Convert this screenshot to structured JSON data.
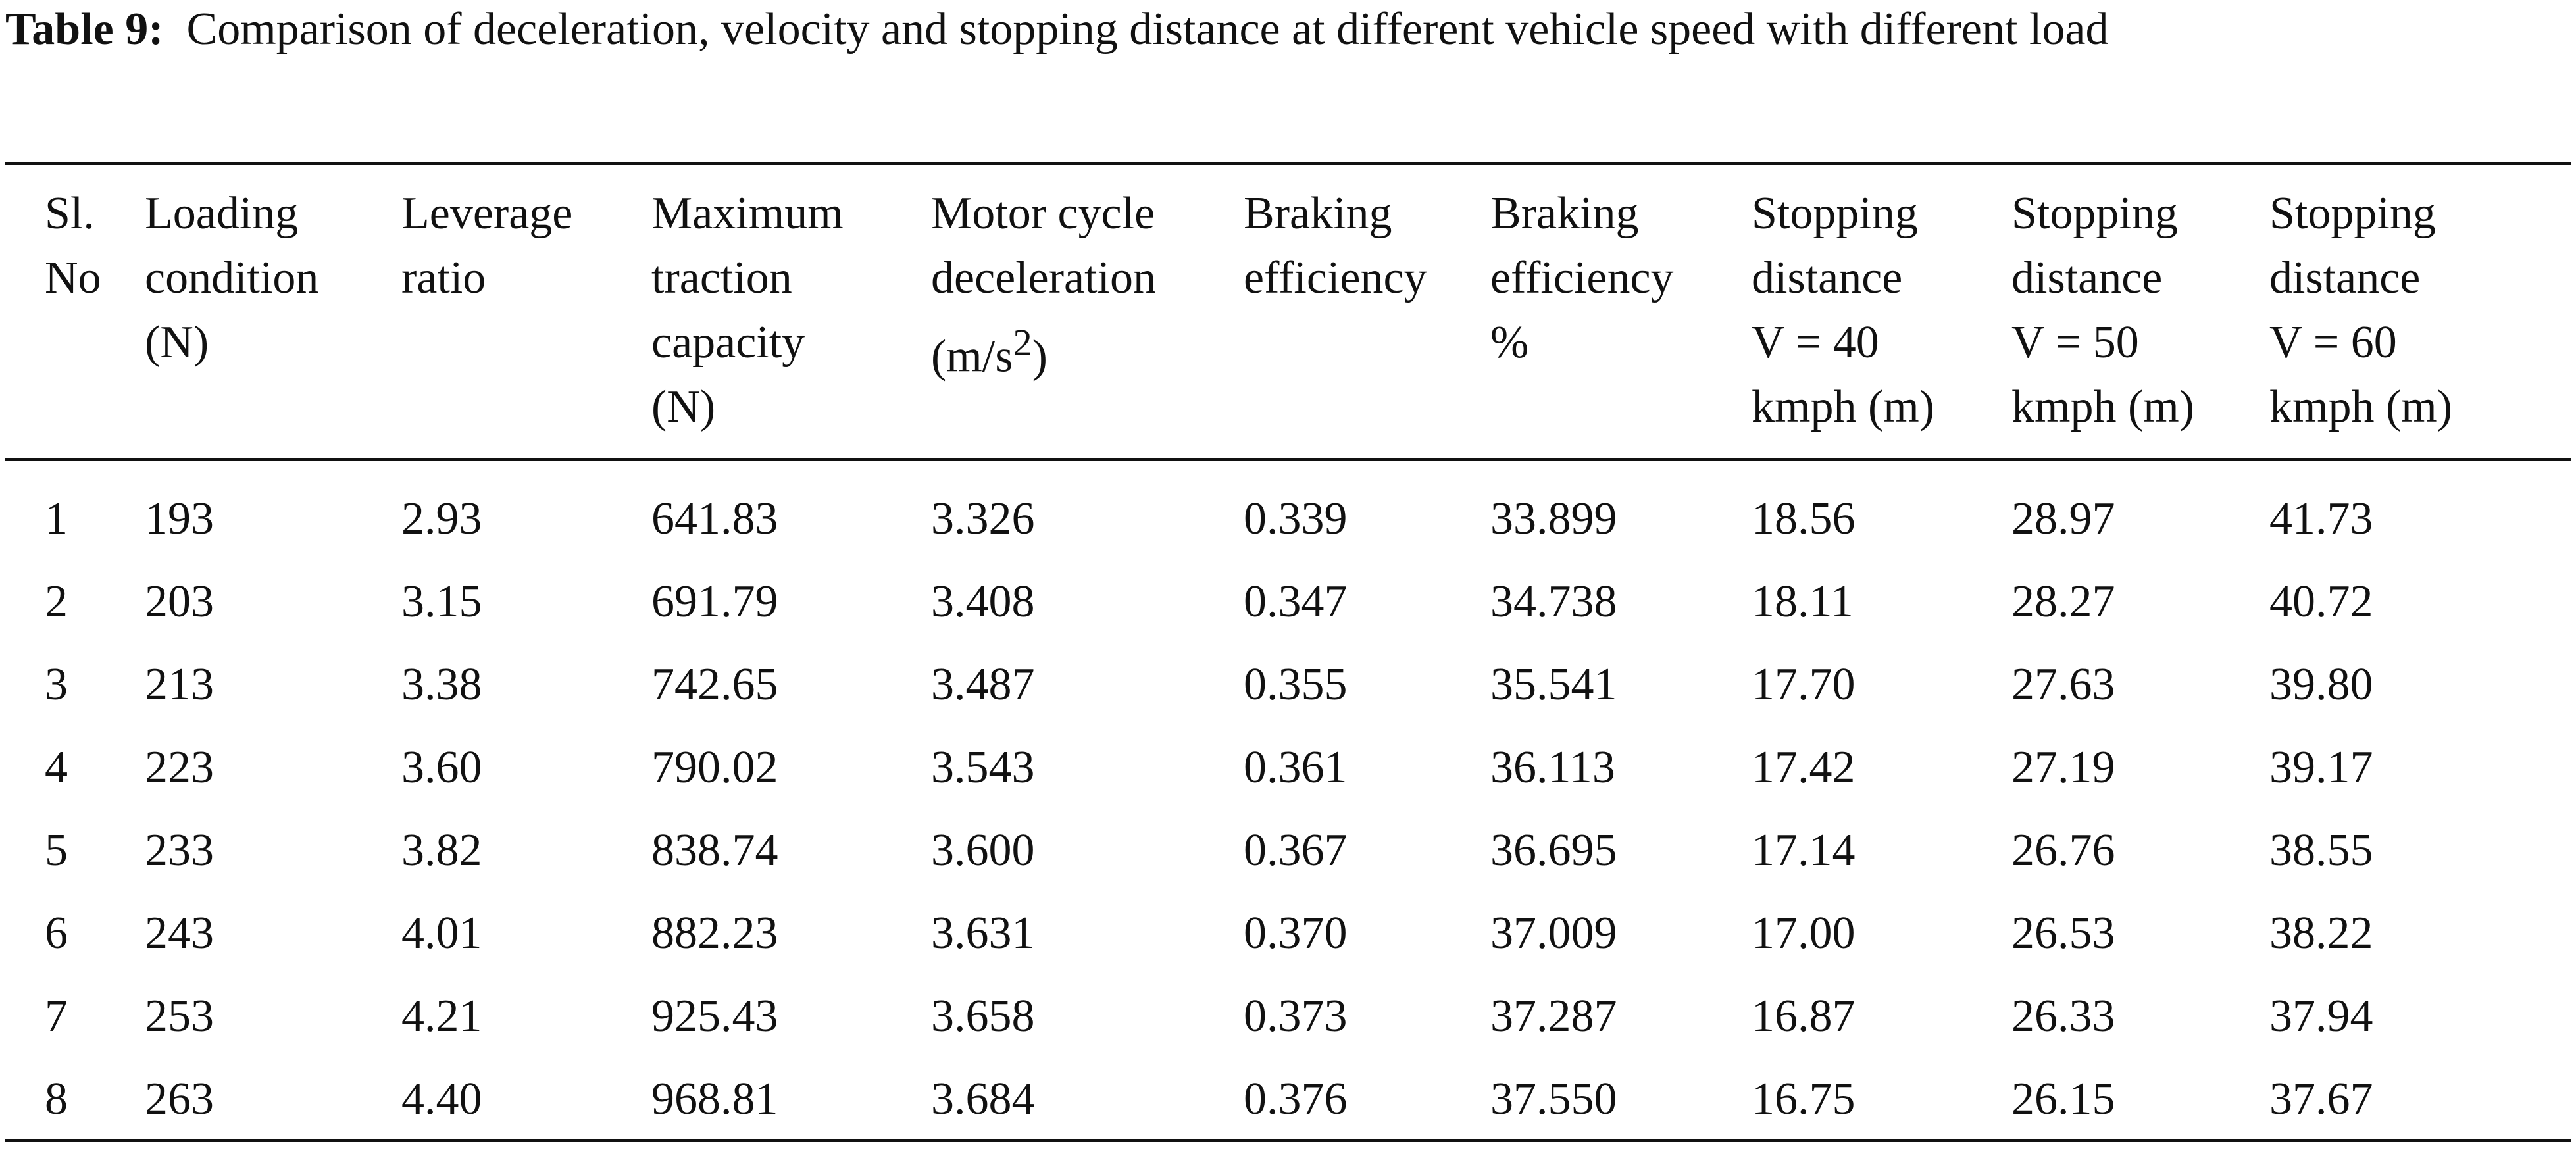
{
  "caption": {
    "label": "Table 9:",
    "text": "Comparison of deceleration, velocity and stopping distance at different vehicle speed with different load"
  },
  "table": {
    "headers": [
      [
        "Sl.",
        "No"
      ],
      [
        "Loading",
        "condition",
        "(N)"
      ],
      [
        "Leverage",
        "ratio"
      ],
      [
        "Maximum",
        "traction",
        "capacity",
        "(N)"
      ],
      [
        "Motor cycle",
        "deceleration",
        "(m/s",
        "2",
        ")"
      ],
      [
        "Braking",
        "efficiency"
      ],
      [
        "Braking",
        "efficiency",
        "%"
      ],
      [
        "Stopping",
        "distance",
        "V = 40",
        "kmph (m)"
      ],
      [
        "Stopping",
        "distance",
        "V = 50",
        "kmph (m)"
      ],
      [
        "Stopping",
        "distance",
        "V = 60",
        "kmph (m)"
      ]
    ],
    "rows": [
      [
        "1",
        "193",
        "2.93",
        "641.83",
        "3.326",
        "0.339",
        "33.899",
        "18.56",
        "28.97",
        "41.73"
      ],
      [
        "2",
        "203",
        "3.15",
        "691.79",
        "3.408",
        "0.347",
        "34.738",
        "18.11",
        "28.27",
        "40.72"
      ],
      [
        "3",
        "213",
        "3.38",
        "742.65",
        "3.487",
        "0.355",
        "35.541",
        "17.70",
        "27.63",
        "39.80"
      ],
      [
        "4",
        "223",
        "3.60",
        "790.02",
        "3.543",
        "0.361",
        "36.113",
        "17.42",
        "27.19",
        "39.17"
      ],
      [
        "5",
        "233",
        "3.82",
        "838.74",
        "3.600",
        "0.367",
        "36.695",
        "17.14",
        "26.76",
        "38.55"
      ],
      [
        "6",
        "243",
        "4.01",
        "882.23",
        "3.631",
        "0.370",
        "37.009",
        "17.00",
        "26.53",
        "38.22"
      ],
      [
        "7",
        "253",
        "4.21",
        "925.43",
        "3.658",
        "0.373",
        "37.287",
        "16.87",
        "26.33",
        "37.94"
      ],
      [
        "8",
        "263",
        "4.40",
        "968.81",
        "3.684",
        "0.376",
        "37.550",
        "16.75",
        "26.15",
        "37.67"
      ]
    ]
  }
}
